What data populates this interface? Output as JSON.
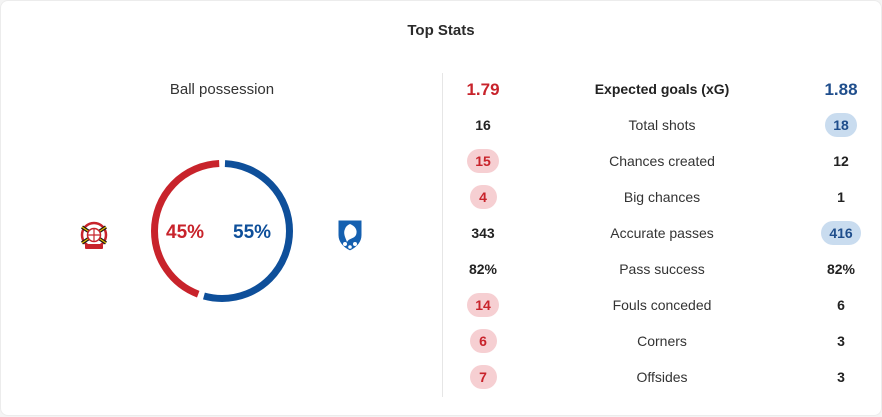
{
  "title": "Top Stats",
  "colors": {
    "home": "#c8232b",
    "away": "#0e4f9a"
  },
  "possession": {
    "title": "Ball possession",
    "home_value": 45,
    "away_value": 55,
    "home_text": "45%",
    "away_text": "55%"
  },
  "teams": {
    "home_logo_icon": "bayer-leverkusen-crest-icon",
    "away_logo_icon": "hoffenheim-crest-icon"
  },
  "stats": [
    {
      "label": "Expected goals (xG)",
      "home": "1.79",
      "away": "1.88",
      "highlight": "xg"
    },
    {
      "label": "Total shots",
      "home": "16",
      "away": "18",
      "highlight": "away"
    },
    {
      "label": "Chances created",
      "home": "15",
      "away": "12",
      "highlight": "home"
    },
    {
      "label": "Big chances",
      "home": "4",
      "away": "1",
      "highlight": "home"
    },
    {
      "label": "Accurate passes",
      "home": "343",
      "away": "416",
      "highlight": "away"
    },
    {
      "label": "Pass success",
      "home": "82%",
      "away": "82%",
      "highlight": "none"
    },
    {
      "label": "Fouls conceded",
      "home": "14",
      "away": "6",
      "highlight": "home"
    },
    {
      "label": "Corners",
      "home": "6",
      "away": "3",
      "highlight": "home"
    },
    {
      "label": "Offsides",
      "home": "7",
      "away": "3",
      "highlight": "home"
    }
  ]
}
